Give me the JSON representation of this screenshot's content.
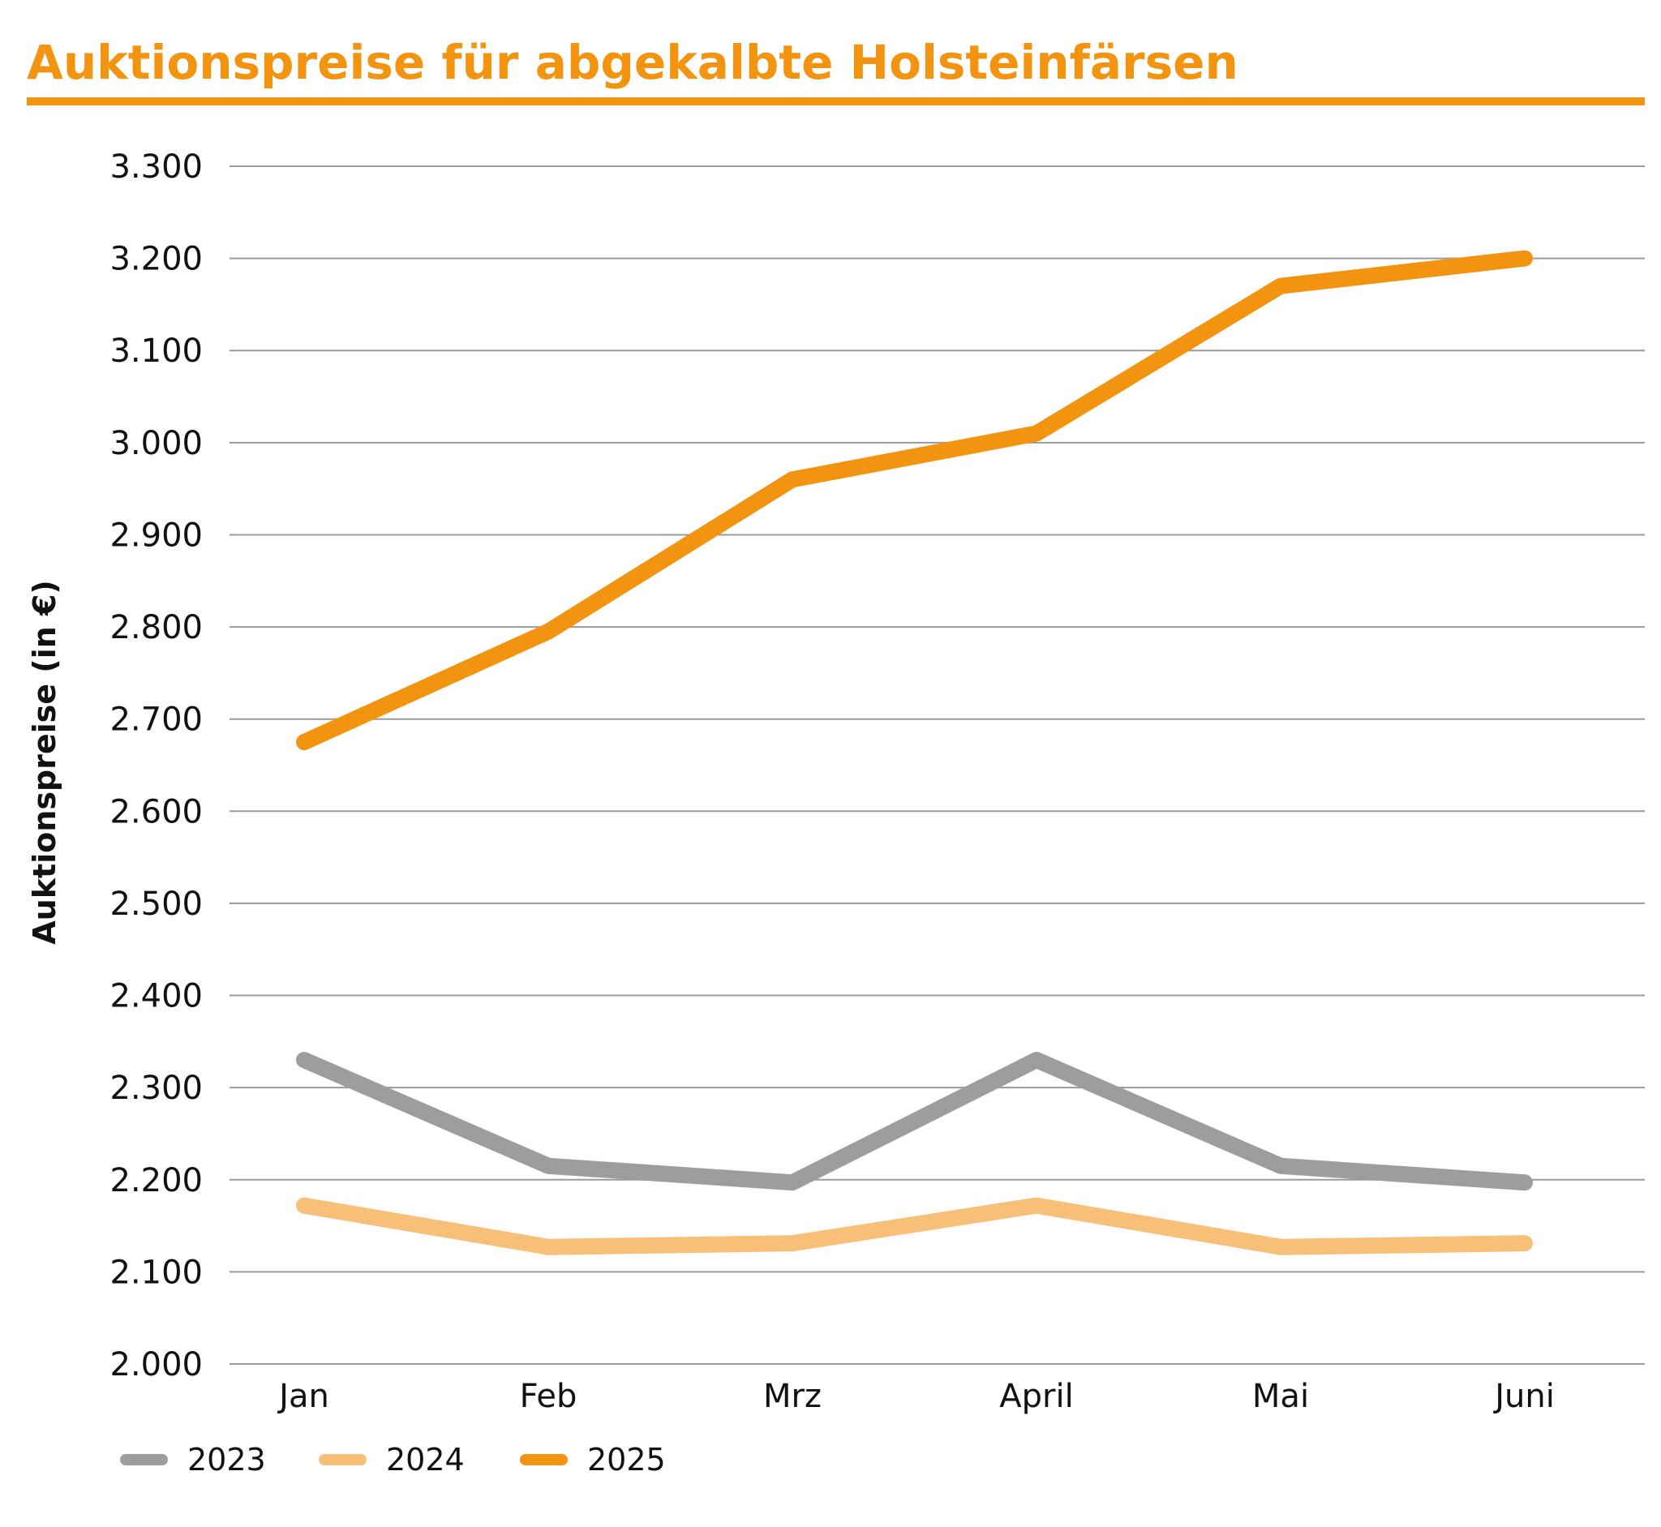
{
  "chart_data": {
    "type": "line",
    "title": "Auktionspreise für abgekalbte Holsteinfärsen",
    "xlabel": "",
    "ylabel": "Auktionspreise (in €)",
    "categories": [
      "Jan",
      "Feb",
      "Mrz",
      "April",
      "Mai",
      "Juni"
    ],
    "y_ticks": [
      2000,
      2100,
      2200,
      2300,
      2400,
      2500,
      2600,
      2700,
      2800,
      2900,
      3000,
      3100,
      3200,
      3300
    ],
    "y_tick_labels": [
      "2.000",
      "2.100",
      "2.200",
      "2.300",
      "2.400",
      "2.500",
      "2.600",
      "2.700",
      "2.800",
      "2.900",
      "3.000",
      "3.100",
      "3.200",
      "3.300"
    ],
    "ylim": [
      2000,
      3300
    ],
    "grid": true,
    "legend_position": "bottom-left",
    "accent_color": "#F39411",
    "gridline_color": "#9a9a9a",
    "series": [
      {
        "name": "2023",
        "color": "#9D9D9C",
        "values": [
          2330,
          2215,
          2197,
          2330,
          2215,
          2197
        ]
      },
      {
        "name": "2024",
        "color": "#F8BF78",
        "values": [
          2172,
          2127,
          2131,
          2172,
          2127,
          2131
        ]
      },
      {
        "name": "2025",
        "color": "#F39411",
        "values": [
          2675,
          2795,
          2960,
          3010,
          3170,
          3200
        ]
      }
    ]
  }
}
